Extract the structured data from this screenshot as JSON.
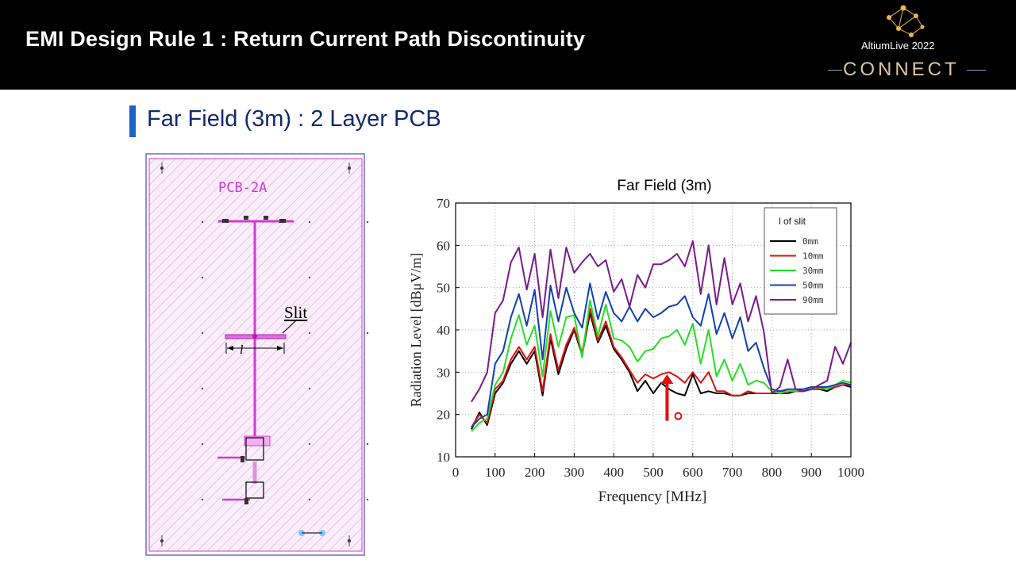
{
  "header": {
    "title": "EMI Design Rule 1 : Return Current Path Discontinuity",
    "brand_event": "AltiumLive 2022",
    "brand_name": "CONNECT"
  },
  "section": {
    "title": "Far Field (3m) : 2 Layer PCB"
  },
  "pcb_figure": {
    "board_label": "PCB-2A",
    "slit_label": "Slit",
    "length_symbol": "l"
  },
  "colors": {
    "header_bg": "#000000",
    "section_bar": "#1c63c7",
    "pcb_magenta": "#d03ad0",
    "arrow": "#e01010"
  },
  "chart_data": {
    "type": "line",
    "title": "Far Field (3m)",
    "xlabel": "Frequency [MHz]",
    "ylabel": "Radiation Level [dBμV/m]",
    "xlim": [
      0,
      1000
    ],
    "ylim": [
      10,
      70
    ],
    "xticks": [
      "0",
      "100",
      "200",
      "300",
      "400",
      "500",
      "600",
      "700",
      "800",
      "900",
      "1000"
    ],
    "yticks": [
      "10",
      "20",
      "30",
      "40",
      "50",
      "60",
      "70"
    ],
    "grid": true,
    "legend_title": "l of slit",
    "legend_position": "top-right",
    "x": [
      40,
      60,
      80,
      100,
      120,
      140,
      160,
      180,
      200,
      220,
      240,
      260,
      280,
      300,
      320,
      340,
      360,
      380,
      400,
      420,
      440,
      460,
      480,
      500,
      520,
      540,
      560,
      580,
      600,
      620,
      640,
      660,
      680,
      700,
      720,
      740,
      760,
      780,
      800,
      820,
      840,
      860,
      880,
      900,
      920,
      940,
      960,
      980,
      1000
    ],
    "series": [
      {
        "name": "0mm",
        "color": "#000000",
        "values": [
          16.5,
          20.5,
          17.5,
          25,
          27.5,
          32,
          35,
          32,
          35,
          24.5,
          38,
          29.5,
          35.5,
          40,
          34,
          44,
          37,
          41,
          35.5,
          33,
          30,
          25.5,
          28,
          25,
          27.5,
          26,
          25,
          24.5,
          29.5,
          25,
          25.5,
          25,
          25,
          24.5,
          24.5,
          25,
          25,
          25,
          25,
          25,
          25,
          25.5,
          25.5,
          26,
          26,
          25.5,
          26.5,
          27,
          26.5
        ]
      },
      {
        "name": "10mm",
        "color": "#e01010",
        "values": [
          17,
          20,
          18,
          26,
          28,
          33,
          36,
          33,
          36,
          25.5,
          39,
          30.5,
          36.5,
          40.5,
          34.5,
          45,
          37.5,
          42,
          36,
          33.5,
          30.5,
          27.5,
          29.5,
          28.5,
          29.5,
          30,
          29,
          27.5,
          30,
          27.5,
          30,
          25.5,
          25.5,
          24.5,
          24.5,
          25.5,
          25,
          25,
          25,
          25.5,
          25.5,
          25.5,
          25.5,
          26,
          26,
          26,
          26.5,
          27,
          27
        ]
      },
      {
        "name": "30mm",
        "color": "#22e022",
        "values": [
          16,
          18,
          19,
          27,
          30,
          38,
          43.5,
          36.5,
          41,
          29,
          44.5,
          36,
          43,
          43.5,
          33.5,
          47,
          38.5,
          46,
          38,
          37.5,
          36,
          32.5,
          35,
          35.5,
          38,
          38.5,
          40,
          36.5,
          41.5,
          32,
          40,
          29,
          33,
          28,
          32,
          27,
          28,
          27.5,
          25.5,
          25,
          25.5,
          25.5,
          26,
          26,
          26.5,
          26,
          27,
          28,
          27.5
        ]
      },
      {
        "name": "50mm",
        "color": "#1040b0",
        "values": [
          17,
          19,
          20,
          32,
          35,
          43,
          48.5,
          41,
          49.5,
          33,
          50.5,
          42,
          50,
          44,
          40.5,
          51,
          42.5,
          49,
          44,
          42,
          45.5,
          42,
          45,
          43,
          44,
          45.5,
          46,
          48,
          43,
          41,
          48.5,
          39,
          44,
          38,
          43,
          35,
          37,
          31,
          26,
          25.5,
          26,
          26,
          26,
          26.5,
          26.5,
          26.5,
          27,
          27.5,
          27
        ]
      },
      {
        "name": "90mm",
        "color": "#7a1a8a",
        "values": [
          23,
          26,
          30,
          44,
          47,
          56,
          59.5,
          49.5,
          58,
          43,
          59,
          47.5,
          59.5,
          53.5,
          56,
          58,
          55,
          56.5,
          49,
          52,
          45.5,
          53,
          50,
          55.5,
          55.5,
          56.5,
          58,
          55,
          61,
          48.5,
          60,
          46,
          57,
          46,
          51,
          42,
          48,
          39.5,
          25,
          26.5,
          33,
          26,
          25.5,
          26,
          27,
          28,
          36,
          32,
          37
        ]
      }
    ],
    "annotation": {
      "type": "arrow",
      "x": 535,
      "y_from": 18.5,
      "y_to": 29.5
    }
  }
}
